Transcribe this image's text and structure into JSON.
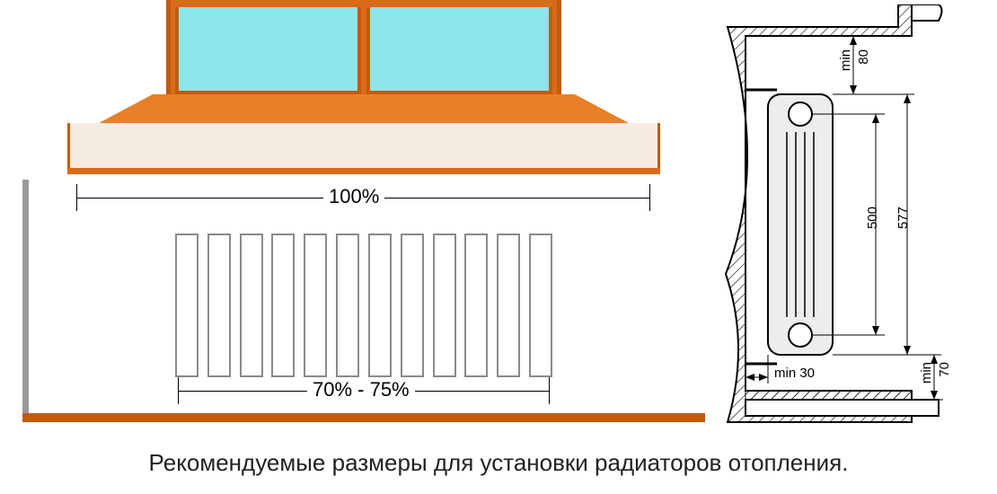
{
  "caption": "Рекомендуемые размеры для установки радиаторов отопления.",
  "front": {
    "sill_width_pct": "100%",
    "radiator_width_pct": "70% - 75%",
    "colors": {
      "window_frame": "#d96b1a",
      "window_frame_dark": "#c55a0a",
      "window_pane": "#8be6ea",
      "sill_top": "#e88028",
      "sill_bottom": "#f6ebdf",
      "sill_thin": "#d96b1a",
      "floor": "#c55a0a",
      "fin_border": "#8a8a8a",
      "wall": "#bfbfbf"
    },
    "radiator_fin_count": 12
  },
  "side": {
    "gap_top": "80",
    "gap_top_prefix": "min",
    "radiator_height_inner": "500",
    "radiator_height_outer": "577",
    "gap_wall": "min 30",
    "gap_bottom": "70",
    "gap_bottom_prefix": "min",
    "colors": {
      "hatch": "#000000",
      "niche_bg": "#ffffff",
      "radiator_body": "#ededed",
      "outline": "#000000"
    }
  }
}
